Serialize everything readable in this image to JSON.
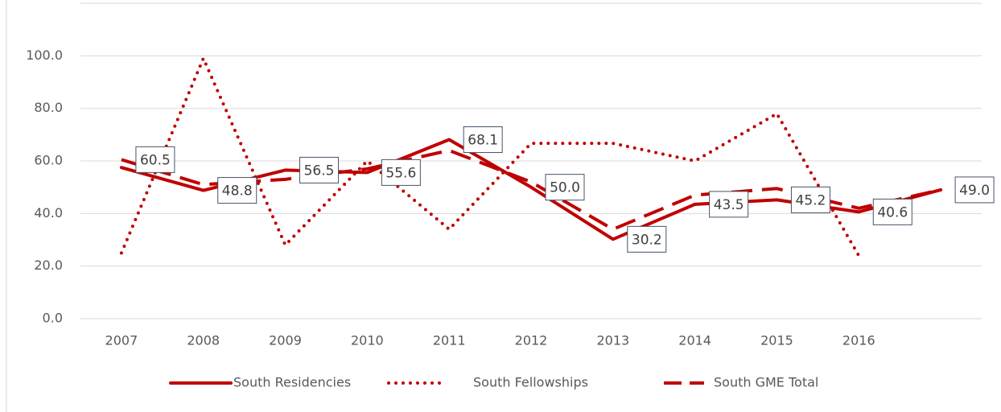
{
  "chart_data": {
    "type": "line",
    "categories": [
      "2007",
      "2008",
      "2009",
      "2010",
      "2011",
      "2012",
      "2013",
      "2014",
      "2015",
      "2016",
      null
    ],
    "series": [
      {
        "name": "South Residencies",
        "color": "#c00000",
        "style": "solid",
        "values": [
          57.5,
          48.8,
          56.5,
          55.6,
          68.1,
          50.0,
          30.2,
          43.5,
          45.2,
          40.6,
          49.0
        ],
        "value_labels": [
          null,
          "48.8",
          "56.5",
          "55.6",
          "68.1",
          "50.0",
          "30.2",
          "43.5",
          "45.2",
          "40.6",
          "49.0"
        ]
      },
      {
        "name": "South Fellowships",
        "color": "#c00000",
        "style": "dotted",
        "values": [
          25,
          99,
          28,
          60,
          34,
          66.7,
          66.7,
          60,
          78,
          24,
          null
        ]
      },
      {
        "name": "South GME Total",
        "color": "#c00000",
        "style": "dashed",
        "values": [
          60.5,
          51,
          53,
          57,
          64,
          52,
          34,
          47,
          49.5,
          42,
          49
        ],
        "value_labels": [
          "60.5",
          null,
          null,
          null,
          null,
          null,
          null,
          null,
          null,
          null,
          null
        ]
      }
    ],
    "ylim": [
      0,
      120
    ],
    "yticks": [
      {
        "value": 0,
        "label": "0.0"
      },
      {
        "value": 20,
        "label": "20.0"
      },
      {
        "value": 40,
        "label": "40.0"
      },
      {
        "value": 60,
        "label": "60.0"
      },
      {
        "value": 80,
        "label": "80.0"
      },
      {
        "value": 100,
        "label": "100.0"
      }
    ],
    "grid": true
  }
}
